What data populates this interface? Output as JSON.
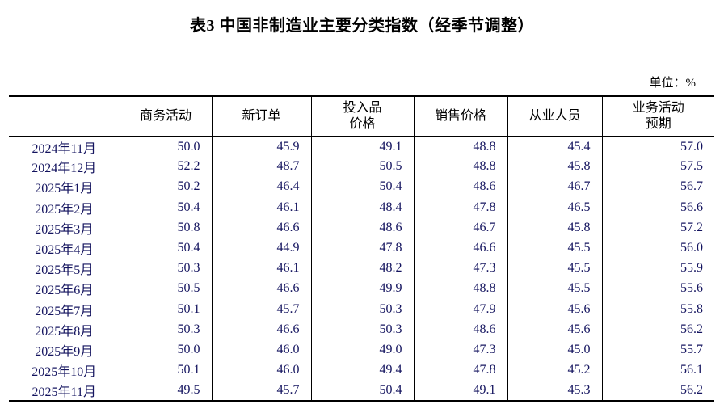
{
  "page": {
    "title": "表3 中国非制造业主要分类指数（经季节调整）",
    "unit_label": "单位：%"
  },
  "colors": {
    "border": "#000000",
    "heading_text": "#000000",
    "data_text": "#14145f"
  },
  "table": {
    "corner_header": "",
    "columns": [
      "商务活动",
      "新订单",
      "投入品\n价格",
      "销售价格",
      "从业人员",
      "业务活动\n预期"
    ],
    "rows": [
      {
        "period": "2024年11月",
        "values": [
          "50.0",
          "45.9",
          "49.1",
          "48.8",
          "45.4",
          "57.0"
        ]
      },
      {
        "period": "2024年12月",
        "values": [
          "52.2",
          "48.7",
          "50.5",
          "48.8",
          "45.8",
          "57.5"
        ]
      },
      {
        "period": "2025年1月",
        "values": [
          "50.2",
          "46.4",
          "50.4",
          "48.6",
          "46.7",
          "56.7"
        ]
      },
      {
        "period": "2025年2月",
        "values": [
          "50.4",
          "46.1",
          "48.4",
          "47.8",
          "46.5",
          "56.6"
        ]
      },
      {
        "period": "2025年3月",
        "values": [
          "50.8",
          "46.6",
          "48.6",
          "46.7",
          "45.8",
          "57.2"
        ]
      },
      {
        "period": "2025年4月",
        "values": [
          "50.4",
          "44.9",
          "47.8",
          "46.6",
          "45.5",
          "56.0"
        ]
      },
      {
        "period": "2025年5月",
        "values": [
          "50.3",
          "46.1",
          "48.2",
          "47.3",
          "45.5",
          "55.9"
        ]
      },
      {
        "period": "2025年6月",
        "values": [
          "50.5",
          "46.6",
          "49.9",
          "48.8",
          "45.5",
          "55.6"
        ]
      },
      {
        "period": "2025年7月",
        "values": [
          "50.1",
          "45.7",
          "50.3",
          "47.9",
          "45.6",
          "55.8"
        ]
      },
      {
        "period": "2025年8月",
        "values": [
          "50.3",
          "46.6",
          "50.3",
          "48.6",
          "45.6",
          "56.2"
        ]
      },
      {
        "period": "2025年9月",
        "values": [
          "50.0",
          "46.0",
          "49.0",
          "47.3",
          "45.0",
          "55.7"
        ]
      },
      {
        "period": "2025年10月",
        "values": [
          "50.1",
          "46.0",
          "49.4",
          "47.8",
          "45.2",
          "56.1"
        ]
      },
      {
        "period": "2025年11月",
        "values": [
          "49.5",
          "45.7",
          "50.4",
          "49.1",
          "45.3",
          "56.2"
        ]
      }
    ]
  }
}
